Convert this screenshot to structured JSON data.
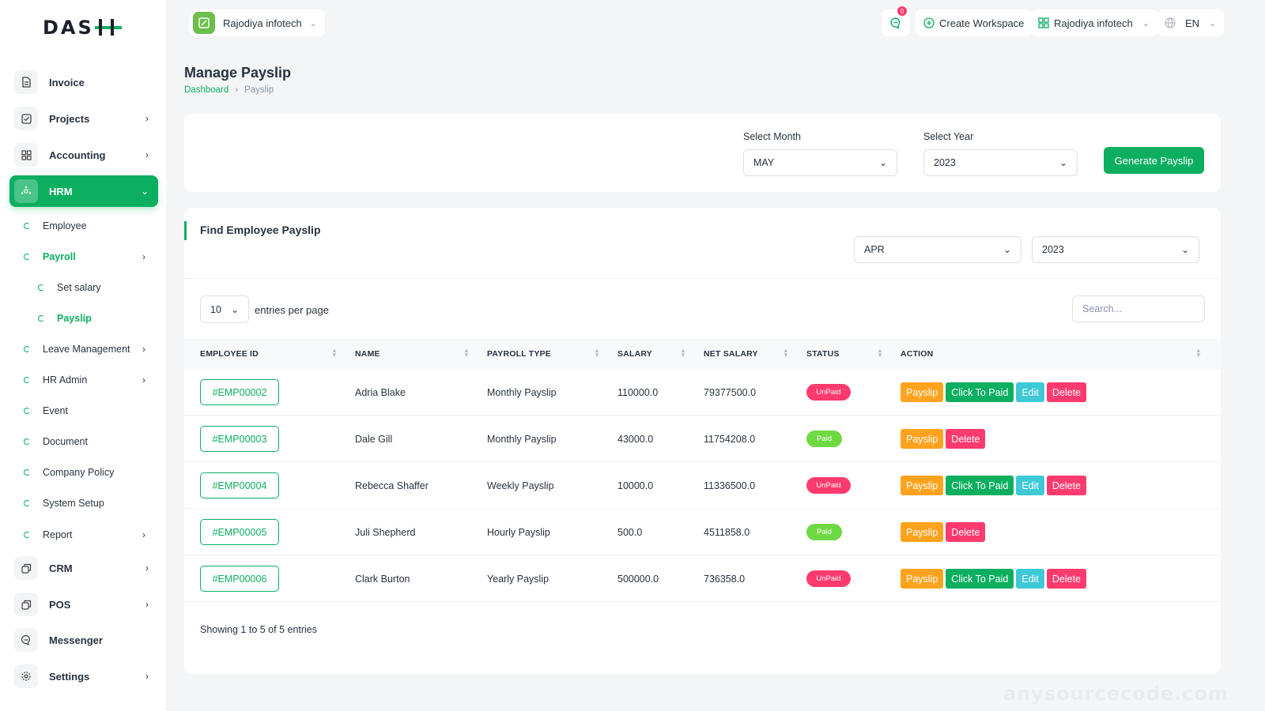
{
  "brand": {
    "logo_text": "DASH",
    "accent": "#0caf60"
  },
  "header": {
    "workspace": "Rajodiya infotech",
    "notifications_count": "0",
    "create_workspace": "Create Workspace",
    "company": "Rajodiya infotech",
    "language": "EN"
  },
  "sidebar": {
    "items": [
      {
        "label": "Invoice",
        "icon": "file-icon"
      },
      {
        "label": "Projects",
        "icon": "check-square-icon"
      },
      {
        "label": "Accounting",
        "icon": "grid-icon"
      },
      {
        "label": "HRM",
        "icon": "users-icon"
      },
      {
        "label": "CRM",
        "icon": "layers-icon"
      },
      {
        "label": "POS",
        "icon": "layers-icon"
      },
      {
        "label": "Messenger",
        "icon": "message-icon"
      },
      {
        "label": "Settings",
        "icon": "gear-icon"
      }
    ],
    "hrm_sub": [
      {
        "label": "Employee"
      },
      {
        "label": "Payroll"
      },
      {
        "label": "Set salary"
      },
      {
        "label": "Payslip"
      },
      {
        "label": "Leave Management"
      },
      {
        "label": "HR Admin"
      },
      {
        "label": "Event"
      },
      {
        "label": "Document"
      },
      {
        "label": "Company Policy"
      },
      {
        "label": "System Setup"
      },
      {
        "label": "Report"
      }
    ]
  },
  "page": {
    "title": "Manage Payslip",
    "breadcrumb": [
      "Dashboard",
      "Payslip"
    ]
  },
  "generate": {
    "month_label": "Select Month",
    "month_value": "MAY",
    "year_label": "Select Year",
    "year_value": "2023",
    "button": "Generate Payslip"
  },
  "find": {
    "title": "Find Employee Payslip",
    "month_value": "APR",
    "year_value": "2023",
    "per_page": "10",
    "entries_label": "entries per page",
    "search_placeholder": "Search..."
  },
  "table": {
    "columns": [
      "EMPLOYEE ID",
      "NAME",
      "PAYROLL TYPE",
      "SALARY",
      "NET SALARY",
      "STATUS",
      "ACTION"
    ],
    "action_labels": {
      "payslip": "Payslip",
      "to_paid": "Click To Paid",
      "edit": "Edit",
      "delete": "Delete"
    },
    "rows": [
      {
        "id": "#EMP00002",
        "name": "Adria Blake",
        "type": "Monthly Payslip",
        "salary": "110000.0",
        "net": "79377500.0",
        "status": "UnPaid"
      },
      {
        "id": "#EMP00003",
        "name": "Dale Gill",
        "type": "Monthly Payslip",
        "salary": "43000.0",
        "net": "11754208.0",
        "status": "Paid"
      },
      {
        "id": "#EMP00004",
        "name": "Rebecca Shaffer",
        "type": "Weekly Payslip",
        "salary": "10000.0",
        "net": "11336500.0",
        "status": "UnPaid"
      },
      {
        "id": "#EMP00005",
        "name": "Juli Shepherd",
        "type": "Hourly Payslip",
        "salary": "500.0",
        "net": "4511858.0",
        "status": "Paid"
      },
      {
        "id": "#EMP00006",
        "name": "Clark Burton",
        "type": "Yearly Payslip",
        "salary": "500000.0",
        "net": "736358.0",
        "status": "UnPaid"
      }
    ],
    "footer": "Showing 1 to 5 of 5 entries"
  },
  "watermark": "anysourcecode.com"
}
